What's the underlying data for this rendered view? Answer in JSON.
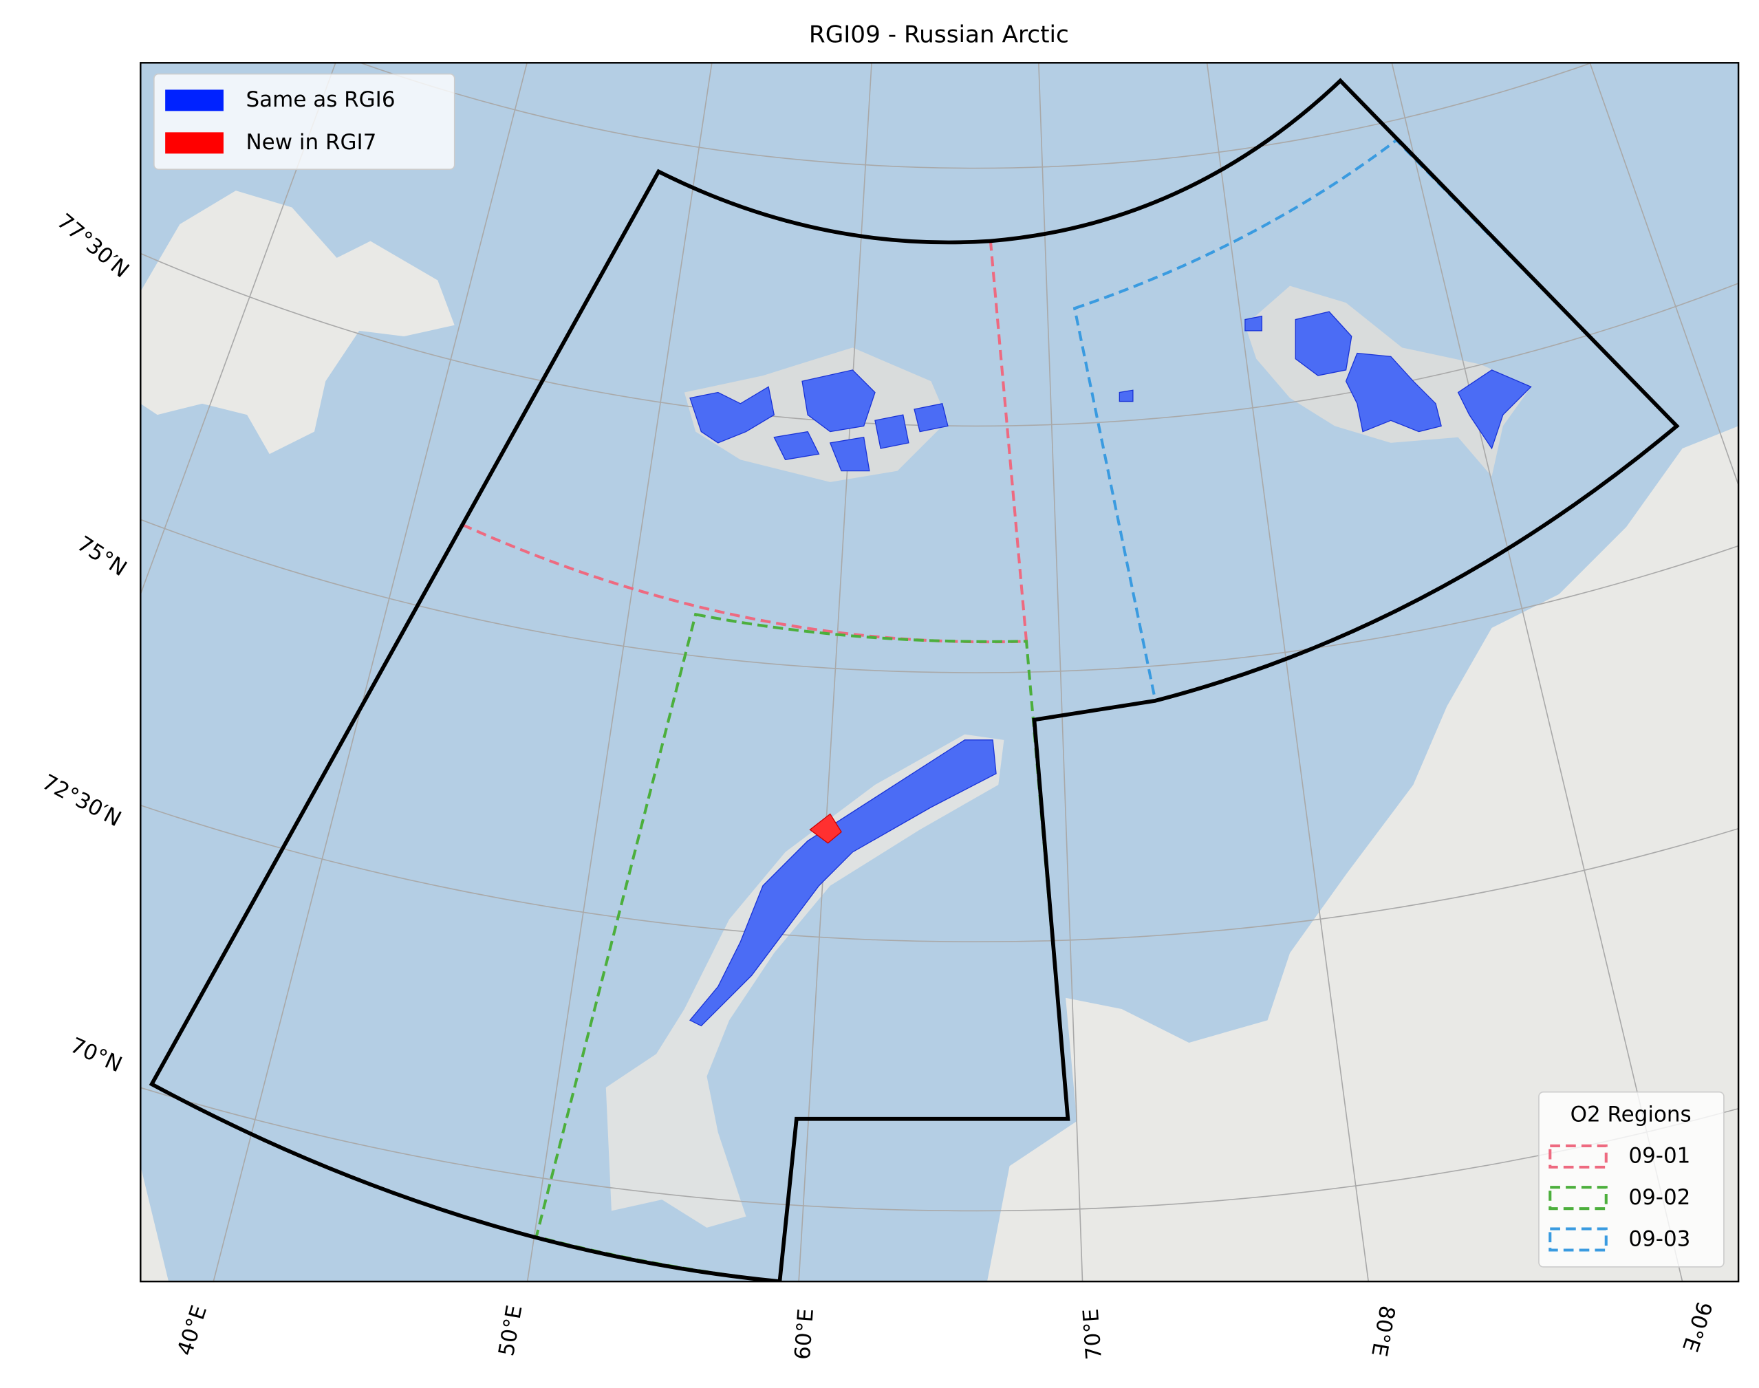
{
  "title": "RGI09 - Russian Arctic",
  "glacier_legend": {
    "items": [
      {
        "label": "Same as RGI6",
        "color": "#0022ff"
      },
      {
        "label": "New in RGI7",
        "color": "#ff0000"
      }
    ]
  },
  "regions_legend": {
    "title": "O2 Regions",
    "items": [
      {
        "label": "09-01",
        "color": "#ee6a80"
      },
      {
        "label": "09-02",
        "color": "#4caf3c"
      },
      {
        "label": "09-03",
        "color": "#3a9be0"
      }
    ]
  },
  "lat_labels": [
    "77°30′N",
    "75°N",
    "72°30′N",
    "70°N"
  ],
  "lon_labels": [
    "40°E",
    "50°E",
    "60°E",
    "70°E",
    "80°E",
    "90°E"
  ]
}
